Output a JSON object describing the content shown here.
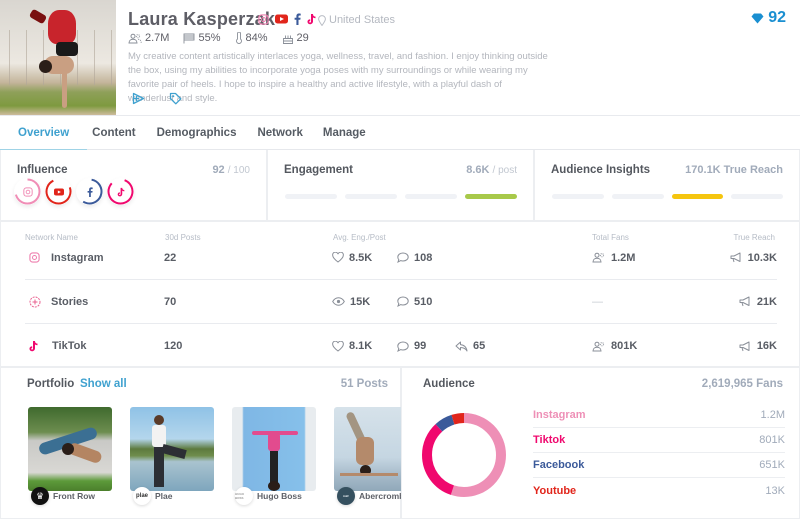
{
  "profile": {
    "name": "Laura Kasperzak",
    "location": "United States",
    "stats": {
      "followers": "2.7M",
      "gender": "55%",
      "audience_pct": "84%",
      "age": "29"
    },
    "bio": "My creative content artistically interlaces yoga, wellness, travel, and fashion. I enjoy thinking outside the box, using my abilities to incorporate yoga poses with my surroundings or while wearing my favorite pair of heels. I hope to inspire a healthy and active lifestyle, with a playful dash of wanderlust and style.",
    "score": "92",
    "social_icons": [
      "instagram-icon",
      "youtube-icon",
      "facebook-icon",
      "tiktok-icon"
    ],
    "actions": [
      "send-icon",
      "tag-icon"
    ]
  },
  "tabs": [
    {
      "label": "Overview",
      "active": true
    },
    {
      "label": "Content",
      "active": false
    },
    {
      "label": "Demographics",
      "active": false
    },
    {
      "label": "Network",
      "active": false
    },
    {
      "label": "Manage",
      "active": false
    }
  ],
  "influence": {
    "title": "Influence",
    "value": "92",
    "max": "/ 100",
    "networks": [
      {
        "name": "instagram",
        "color": "#f08db6",
        "pct": 0.7
      },
      {
        "name": "youtube",
        "color": "#e1251b",
        "pct": 0.72
      },
      {
        "name": "facebook",
        "color": "#3b5a9a",
        "pct": 0.55
      },
      {
        "name": "tiktok",
        "color": "#f0086e",
        "pct": 0.8
      }
    ]
  },
  "engagement": {
    "title": "Engagement",
    "value": "8.6K",
    "unit": "/ post",
    "active_bar": 4,
    "active_color": "#a8c94a"
  },
  "audience_insights": {
    "title": "Audience Insights",
    "value": "170.1K True Reach",
    "active_bar": 3,
    "active_color": "#f5c50f"
  },
  "network_table": {
    "headers": {
      "name": "Network Name",
      "posts": "30d Posts",
      "eng": "Avg. Eng./Post",
      "fans": "Total Fans",
      "reach": "True Reach"
    },
    "rows": [
      {
        "network": "Instagram",
        "icon": "instagram-icon",
        "posts": "22",
        "likes": "8.5K",
        "views": null,
        "comments": "108",
        "shares": null,
        "fans": "1.2M",
        "reach": "10.3K"
      },
      {
        "network": "Stories",
        "icon": "stories-icon",
        "posts": "70",
        "likes": null,
        "views": "15K",
        "comments": "510",
        "shares": null,
        "fans": "—",
        "reach": "21K"
      },
      {
        "network": "TikTok",
        "icon": "tiktok-icon",
        "posts": "120",
        "likes": "8.1K",
        "views": null,
        "comments": "99",
        "shares": "65",
        "fans": "801K",
        "reach": "16K"
      }
    ]
  },
  "portfolio": {
    "title": "Portfolio",
    "show_all": "Show all",
    "count": "51 Posts",
    "items": [
      {
        "brand": "Front Row",
        "logo_text": "♛"
      },
      {
        "brand": "Plae",
        "logo_text": "plae"
      },
      {
        "brand": "Hugo Boss",
        "logo_text": "HUGO BOSS"
      },
      {
        "brand": "Abercromb...",
        "logo_text": "A&F"
      }
    ]
  },
  "audience": {
    "title": "Audience",
    "total": "2,619,965 Fans",
    "items": [
      {
        "label": "Instagram",
        "value": "1.2M",
        "color": "#ee8fb6"
      },
      {
        "label": "Tiktok",
        "value": "801K",
        "color": "#f0086e"
      },
      {
        "label": "Facebook",
        "value": "651K",
        "color": "#3b5a9a"
      },
      {
        "label": "Youtube",
        "value": "13K",
        "color": "#e1251b"
      }
    ]
  },
  "chart_data": {
    "type": "pie",
    "title": "Audience",
    "categories": [
      "Instagram",
      "Tiktok",
      "Facebook",
      "Youtube"
    ],
    "values": [
      1200000,
      801000,
      651000,
      13000
    ],
    "display_values": [
      "1.2M",
      "801K",
      "651K",
      "13K"
    ],
    "total": "2,619,965 Fans",
    "colors": [
      "#ee8fb6",
      "#f0086e",
      "#3b5a9a",
      "#e1251b"
    ],
    "donut": true
  }
}
